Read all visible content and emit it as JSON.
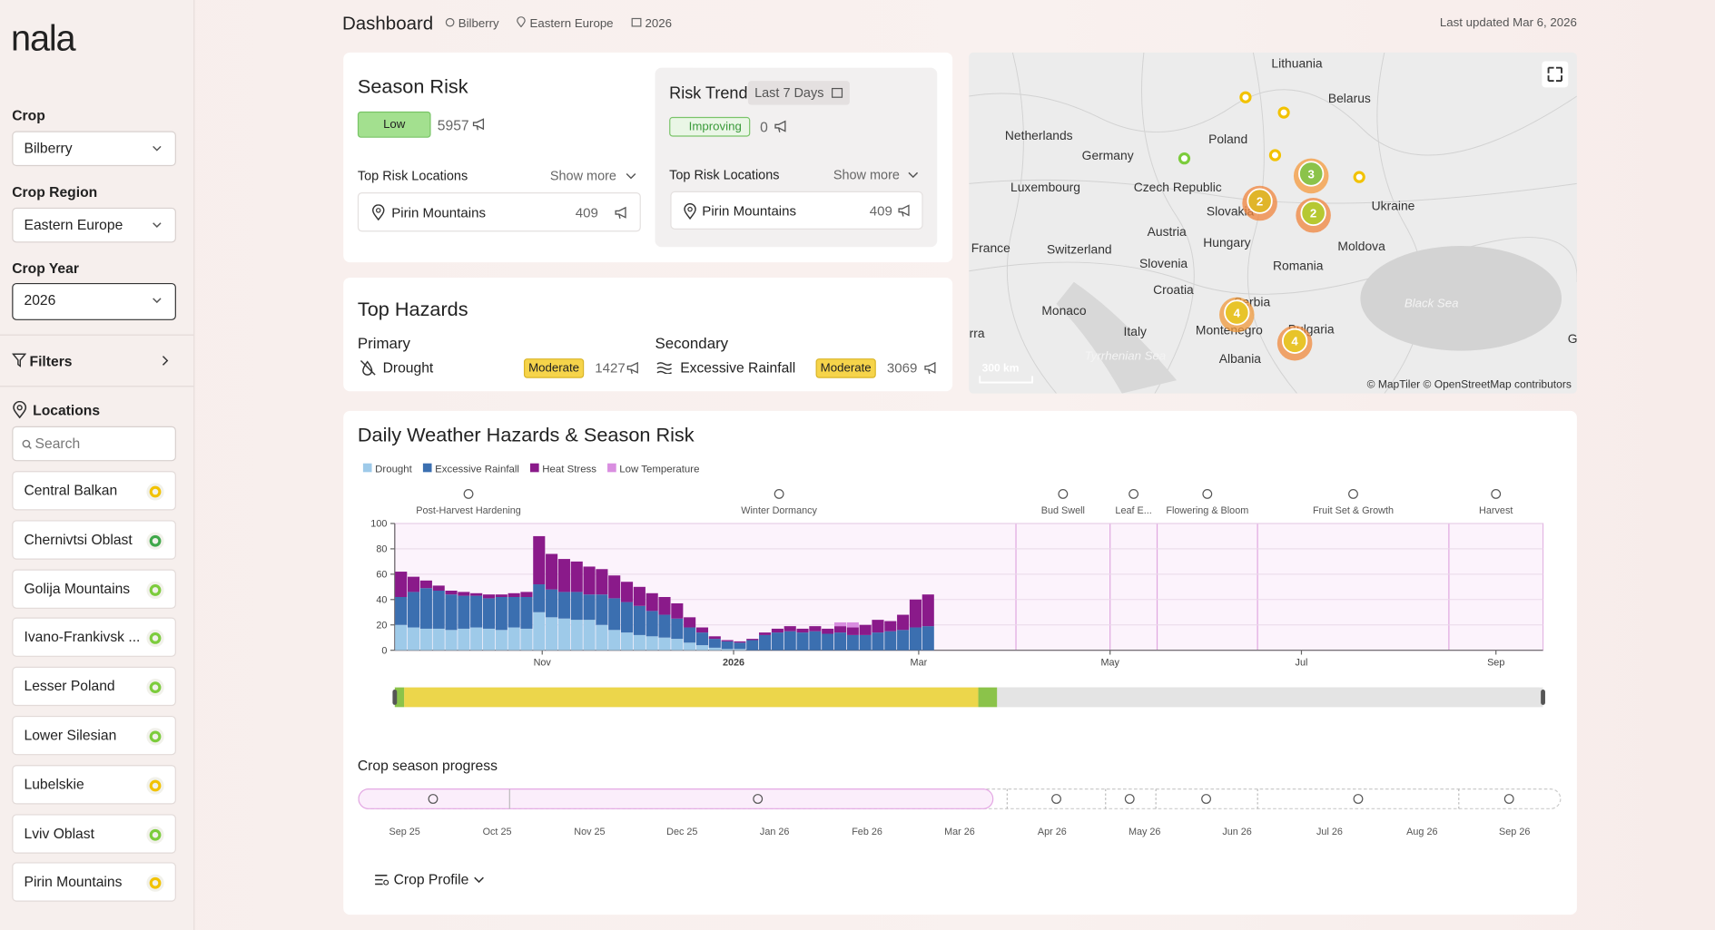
{
  "sidebar": {
    "logo": "nala",
    "crop": {
      "label": "Crop",
      "value": "Bilberry"
    },
    "region": {
      "label": "Crop Region",
      "value": "Eastern Europe"
    },
    "year": {
      "label": "Crop Year",
      "value": "2026"
    },
    "filters": "Filters",
    "locations": {
      "title": "Locations",
      "search": "Search",
      "items": [
        {
          "name": "Central Balkan",
          "status_color": "#f2c200"
        },
        {
          "name": "Chernivtsi Oblast",
          "status_color": "#3fa84a"
        },
        {
          "name": "Golija Mountains",
          "status_color": "#7ccc3c"
        },
        {
          "name": "Ivano-Frankivsk ...",
          "status_color": "#7ccc3c"
        },
        {
          "name": "Lesser Poland",
          "status_color": "#7ccc3c"
        },
        {
          "name": "Lower Silesian",
          "status_color": "#7ccc3c"
        },
        {
          "name": "Lubelskie",
          "status_color": "#f2c200"
        },
        {
          "name": "Lviv Oblast",
          "status_color": "#7ccc3c"
        },
        {
          "name": "Pirin Mountains",
          "status_color": "#f2c200"
        }
      ]
    }
  },
  "header": {
    "title": "Dashboard",
    "crop": "Bilberry",
    "region": "Eastern Europe",
    "year": "2026",
    "updated": "Last updated Mar 6, 2026"
  },
  "season_risk": {
    "title": "Season Risk",
    "level": "Low",
    "count": 5957,
    "top_title": "Top Risk Locations",
    "show_more": "Show more",
    "top_location": {
      "name": "Pirin Mountains",
      "count": 409
    }
  },
  "risk_trend": {
    "title": "Risk Trend",
    "period": "Last 7 Days",
    "status": "Improving",
    "count": 0,
    "top_title": "Top Risk Locations",
    "show_more": "Show more",
    "top_location": {
      "name": "Pirin Mountains",
      "count": 409
    }
  },
  "top_hazards": {
    "title": "Top Hazards",
    "primary": {
      "label": "Primary",
      "name": "Drought",
      "level": "Moderate",
      "count": 1427
    },
    "secondary": {
      "label": "Secondary",
      "name": "Excessive Rainfall",
      "level": "Moderate",
      "count": 3069
    }
  },
  "map": {
    "labels": [
      "Lithuania",
      "Belarus",
      "Netherlands",
      "Poland",
      "Germany",
      "Luxembourg",
      "Czech Republic",
      "Ukraine",
      "Slovakia",
      "Austria",
      "Hungary",
      "Moldova",
      "France",
      "Switzerland",
      "Slovenia",
      "Romania",
      "Croatia",
      "Serbia",
      "Monaco",
      "Italy",
      "Montenegro",
      "Bulgaria",
      "Andorra",
      "Georgia",
      "Albania",
      "Black Sea",
      "Tyrrhenian Sea"
    ],
    "clusters": [
      {
        "count": 3,
        "color": "#8bc34a",
        "halo": "#f59a3c"
      },
      {
        "count": 2,
        "color": "#e0b52a",
        "halo": "#f0843c"
      },
      {
        "count": 2,
        "color": "#b6c832",
        "halo": "#f0843c"
      },
      {
        "count": 4,
        "color": "#e8c42a",
        "halo": "#f09a3c"
      },
      {
        "count": 4,
        "color": "#e8c42a",
        "halo": "#f08a3c"
      }
    ],
    "markers": [
      "#f2c200",
      "#f2c200",
      "#f2c200",
      "#f2c200",
      "#7ccc3c"
    ],
    "scale": "300 km",
    "attribution": "© MapTiler © OpenStreetMap contributors"
  },
  "chart_data": {
    "type": "bar",
    "title": "Daily Weather Hazards & Season Risk",
    "x": [
      2,
      6,
      10,
      14,
      18,
      22,
      26,
      30,
      34,
      38,
      42,
      46,
      50,
      54,
      58,
      62,
      66,
      70,
      74,
      78,
      82,
      86,
      90,
      94,
      98,
      102,
      106,
      110,
      114,
      118,
      122,
      126,
      130,
      134,
      138,
      142,
      146,
      150,
      154,
      158,
      162,
      166,
      170
    ],
    "series": [
      {
        "name": "Drought",
        "color": "#9ecae9",
        "values": [
          20,
          18,
          17,
          17,
          16,
          17,
          18,
          17,
          16,
          18,
          17,
          30,
          26,
          25,
          24,
          24,
          20,
          16,
          14,
          12,
          11,
          10,
          9,
          6,
          4,
          2,
          1,
          1,
          0,
          0,
          0,
          0,
          0,
          0,
          0,
          0,
          0,
          0,
          0,
          0,
          0,
          0,
          0
        ]
      },
      {
        "name": "Excessive Rainfall",
        "color": "#3b6fb0",
        "values": [
          22,
          28,
          32,
          30,
          28,
          26,
          25,
          24,
          26,
          24,
          25,
          22,
          22,
          21,
          22,
          20,
          24,
          25,
          24,
          23,
          20,
          18,
          16,
          12,
          10,
          7,
          6,
          5,
          8,
          12,
          14,
          15,
          14,
          15,
          13,
          14,
          12,
          12,
          14,
          15,
          16,
          18,
          19
        ]
      },
      {
        "name": "Heat Stress",
        "color": "#8a1a8a",
        "values": [
          20,
          12,
          6,
          4,
          3,
          3,
          2,
          3,
          2,
          3,
          4,
          38,
          28,
          26,
          24,
          22,
          20,
          18,
          16,
          15,
          14,
          14,
          12,
          8,
          4,
          2,
          1,
          1,
          1,
          2,
          3,
          4,
          3,
          4,
          4,
          5,
          6,
          8,
          10,
          8,
          12,
          22,
          25
        ]
      },
      {
        "name": "Low Temperature",
        "color": "#d98ee0",
        "values": [
          0,
          0,
          0,
          0,
          0,
          0,
          0,
          0,
          0,
          0,
          0,
          0,
          0,
          0,
          0,
          0,
          0,
          0,
          0,
          0,
          0,
          0,
          0,
          0,
          0,
          0,
          0,
          0,
          0,
          0,
          0,
          0,
          0,
          0,
          0,
          3,
          4,
          0,
          0,
          0,
          0,
          0,
          0
        ]
      }
    ],
    "xlim": [
      0,
      366
    ],
    "xticks": [
      {
        "value": 47,
        "label": "Nov"
      },
      {
        "value": 108,
        "label": "2026"
      },
      {
        "value": 167,
        "label": "Mar"
      },
      {
        "value": 228,
        "label": "May"
      },
      {
        "value": 289,
        "label": "Jul"
      },
      {
        "value": 351,
        "label": "Sep"
      }
    ],
    "ylim": [
      0,
      100
    ],
    "yticks": [
      0,
      20,
      40,
      60,
      80,
      100
    ],
    "grid": true,
    "phases": [
      {
        "name": "Post-Harvest Hardening",
        "start": 0,
        "end": 47
      },
      {
        "name": "Winter Dormancy",
        "start": 47,
        "end": 198
      },
      {
        "name": "Bud Swell",
        "start": 198,
        "end": 228
      },
      {
        "name": "Leaf E...",
        "start": 228,
        "end": 243
      },
      {
        "name": "Flowering & Bloom",
        "start": 243,
        "end": 275
      },
      {
        "name": "Fruit Set & Growth",
        "start": 275,
        "end": 336
      },
      {
        "name": "Harvest",
        "start": 336,
        "end": 366
      }
    ],
    "risk_strip": [
      {
        "start": 0,
        "end": 3,
        "color": "#8bc34a"
      },
      {
        "start": 3,
        "end": 186,
        "color": "#ecd64b"
      },
      {
        "start": 186,
        "end": 192,
        "color": "#8bc34a"
      },
      {
        "start": 192,
        "end": 366,
        "color": "#e4e4e4"
      }
    ]
  },
  "progress": {
    "title": "Crop season progress",
    "months": [
      "Sep 25",
      "Oct 25",
      "Nov 25",
      "Dec 25",
      "Jan 26",
      "Feb 26",
      "Mar 26",
      "Apr 26",
      "May 26",
      "Jun 26",
      "Jul 26",
      "Aug 26",
      "Sep 26"
    ],
    "profile": "Crop Profile"
  }
}
